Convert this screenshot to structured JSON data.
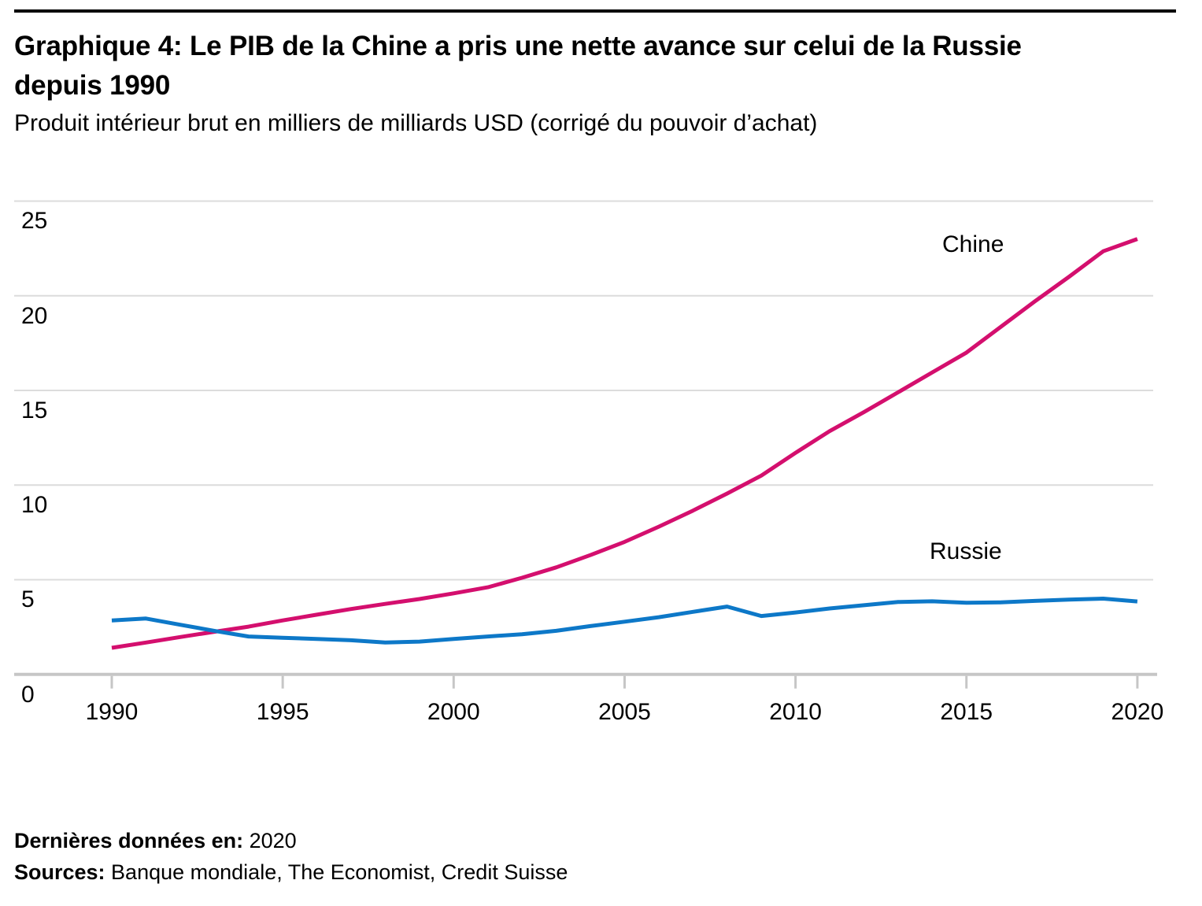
{
  "header": {
    "title_line1": "Graphique 4: Le PIB de la Chine a pris une nette avance sur celui de la Russie",
    "title_line2": "depuis 1990",
    "subtitle": "Produit intérieur brut en milliers de milliards USD (corrigé du pouvoir d’achat)"
  },
  "footer": {
    "last_data_label": "Dernières données en:",
    "last_data_value": " 2020",
    "sources_label": "Sources:",
    "sources_value": " Banque mondiale, The Economist, Credit Suisse"
  },
  "chart_data": {
    "type": "line",
    "title": "Graphique 4: Le PIB de la Chine a pris une nette avance sur celui de la Russie depuis 1990",
    "subtitle": "Produit intérieur brut en milliers de milliards USD (corrigé du pouvoir d’achat)",
    "xlabel": "",
    "ylabel": "",
    "ylim": [
      0,
      25
    ],
    "grid": true,
    "legend": "inline-labels",
    "colors": {
      "grid": "#dcdcdc",
      "axis": "#c6c6c6",
      "text": "#000000"
    },
    "x": [
      1990,
      1991,
      1992,
      1993,
      1994,
      1995,
      1996,
      1997,
      1998,
      1999,
      2000,
      2001,
      2002,
      2003,
      2004,
      2005,
      2006,
      2007,
      2008,
      2009,
      2010,
      2011,
      2012,
      2013,
      2014,
      2015,
      2016,
      2017,
      2018,
      2019,
      2020
    ],
    "x_ticks": [
      1990,
      1995,
      2000,
      2005,
      2010,
      2015,
      2020
    ],
    "y_ticks": [
      25,
      20,
      15,
      10,
      5,
      0
    ],
    "series": [
      {
        "name": "Chine",
        "color": "#d40f6e",
        "values": [
          1.4,
          1.68,
          1.97,
          2.25,
          2.52,
          2.85,
          3.15,
          3.45,
          3.72,
          3.98,
          4.28,
          4.6,
          5.1,
          5.65,
          6.3,
          7.0,
          7.8,
          8.65,
          9.55,
          10.5,
          11.7,
          12.85,
          13.85,
          14.9,
          15.95,
          17.0,
          18.35,
          19.7,
          21.0,
          22.35,
          23.0
        ]
      },
      {
        "name": "Russie",
        "color": "#0d78c8",
        "values": [
          2.85,
          2.95,
          2.62,
          2.3,
          2.0,
          1.93,
          1.87,
          1.8,
          1.68,
          1.73,
          1.87,
          2.0,
          2.12,
          2.3,
          2.55,
          2.78,
          3.02,
          3.3,
          3.58,
          3.08,
          3.27,
          3.48,
          3.65,
          3.82,
          3.86,
          3.78,
          3.8,
          3.88,
          3.95,
          4.0,
          3.85
        ]
      }
    ]
  }
}
